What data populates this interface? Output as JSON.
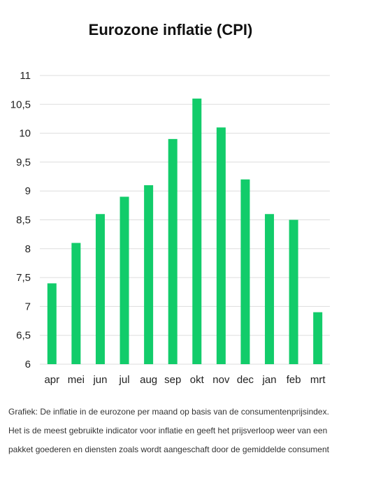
{
  "chart_data": {
    "type": "bar",
    "title": "Eurozone inflatie (CPI)",
    "categories": [
      "apr",
      "mei",
      "jun",
      "jul",
      "aug",
      "sep",
      "okt",
      "nov",
      "dec",
      "jan",
      "feb",
      "mrt"
    ],
    "values": [
      7.4,
      8.1,
      8.6,
      8.9,
      9.1,
      9.9,
      10.6,
      10.1,
      9.2,
      8.6,
      8.5,
      6.9
    ],
    "ylim": [
      6,
      11
    ],
    "yticks": [
      "6",
      "6,5",
      "7",
      "7,5",
      "8",
      "8,5",
      "9",
      "9,5",
      "10",
      "10,5",
      "11"
    ],
    "xlabel": "",
    "ylabel": "",
    "grid": true,
    "bar_color": "#12cc6a"
  },
  "caption": "Grafiek: De inflatie in de eurozone per maand op basis van de consumentenprijsindex. Het is de meest gebruikte indicator voor inflatie en geeft het prijsverloop weer van een pakket goederen en diensten zoals wordt aangeschaft door de gemiddelde consument"
}
